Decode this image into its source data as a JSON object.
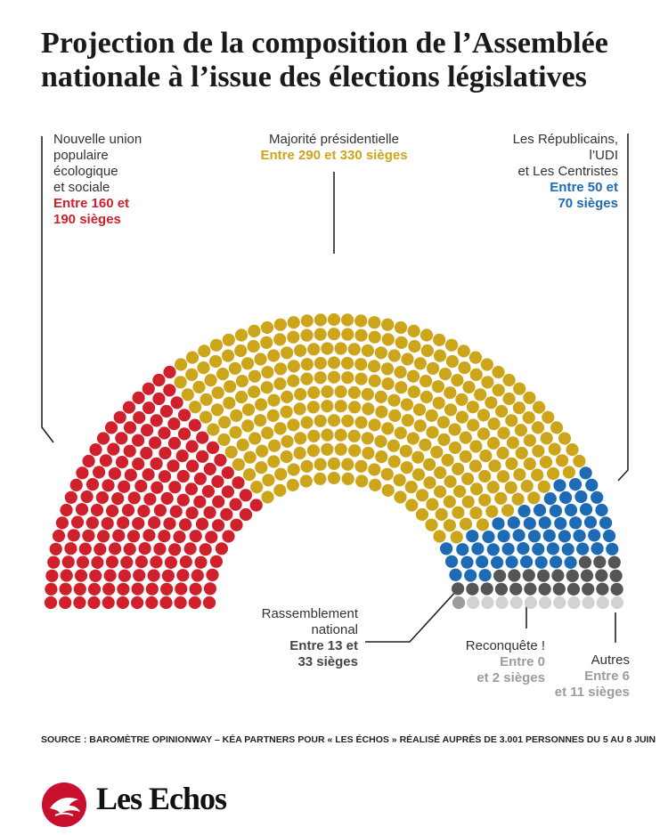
{
  "title_lines": [
    "Projection de la composition de l’Assemblée",
    "nationale à l’issue des élections législatives"
  ],
  "chart_data": {
    "type": "hemicycle",
    "title": "Projection de la composition de l’Assemblée nationale à l’issue des élections législatives",
    "total_seats": 577,
    "groups": [
      {
        "key": "nupes",
        "name_lines": [
          "Nouvelle union",
          "populaire",
          "écologique",
          "et sociale"
        ],
        "range_lines": [
          "Entre 160 et",
          "190 sièges"
        ],
        "seat_range": [
          160,
          190
        ],
        "seats_shown": 175,
        "color": "#d0202b"
      },
      {
        "key": "ensemble",
        "name_lines": [
          "Majorité présidentielle"
        ],
        "range_lines": [
          "Entre 290 et 330 sièges"
        ],
        "seat_range": [
          290,
          330
        ],
        "seats_shown": 310,
        "color": "#cda51a"
      },
      {
        "key": "lr",
        "name_lines": [
          "Les Républicains,",
          "l’UDI",
          "et Les Centristes"
        ],
        "range_lines": [
          "Entre 50 et",
          "70 sièges"
        ],
        "seat_range": [
          50,
          70
        ],
        "seats_shown": 56,
        "color": "#1e6bb5"
      },
      {
        "key": "rn",
        "name_lines": [
          "Rassemblement",
          "national"
        ],
        "range_lines": [
          "Entre 13 et",
          "33 sièges"
        ],
        "seat_range": [
          13,
          33
        ],
        "seats_shown": 24,
        "color": "#555555"
      },
      {
        "key": "reconquete",
        "name_lines": [
          "Reconquête !"
        ],
        "range_lines": [
          "Entre 0",
          "et 2 sièges"
        ],
        "seat_range": [
          0,
          2
        ],
        "seats_shown": 1,
        "color": "#9c9c9c"
      },
      {
        "key": "autres",
        "name_lines": [
          "Autres"
        ],
        "range_lines": [
          "Entre 6",
          "et 11 sièges"
        ],
        "seat_range": [
          6,
          11
        ],
        "seats_shown": 11,
        "color": "#d2d2d2"
      }
    ]
  },
  "source": "SOURCE : BAROMÈTRE OPINIONWAY – KÉA PARTNERS POUR « LES ÉCHOS » RÉALISÉ AUPRÈS DE 3.001 PERSONNES DU 5 AU 8 JUIN",
  "brand": "Les Echos",
  "colors": {
    "nupes": "#d0202b",
    "ensemble": "#cda51a",
    "lr": "#1e6bb5",
    "rn": "#555555",
    "reconquete": "#9c9c9c",
    "autres": "#d2d2d2",
    "logo": "#c8102e"
  }
}
